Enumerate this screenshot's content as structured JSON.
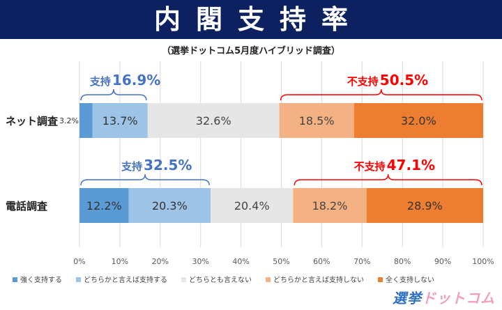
{
  "header": {
    "title": "内閣支持率",
    "subtitle": "（選挙ドットコム5月度ハイブリッド調査）"
  },
  "brand": {
    "part1": "選挙",
    "part2": "ドットコム"
  },
  "colors": {
    "strong_support": "#5b9bd5",
    "somewhat_support": "#9dc3e6",
    "neutral": "#e7e6e6",
    "somewhat_not": "#f4b183",
    "not_at_all": "#ed7d31",
    "support_text": "#4472c4",
    "nonsupport_text": "#ff0000",
    "title_bg": "#0d2160"
  },
  "chart_data": {
    "type": "bar",
    "orientation": "horizontal",
    "stacked": true,
    "categories": [
      "ネット調査",
      "電話調査"
    ],
    "series": [
      {
        "name": "強く支持する",
        "values": [
          3.2,
          12.2
        ]
      },
      {
        "name": "どちらかと言えば支持する",
        "values": [
          13.7,
          20.3
        ]
      },
      {
        "name": "どちらとも言えない",
        "values": [
          32.6,
          20.4
        ]
      },
      {
        "name": "どちらかと言えば支持しない",
        "values": [
          18.5,
          18.2
        ]
      },
      {
        "name": "全く支持しない",
        "values": [
          32.0,
          28.9
        ]
      }
    ],
    "data_labels": [
      [
        "3.2%",
        "13.7%",
        "32.6%",
        "18.5%",
        "32.0%"
      ],
      [
        "12.2%",
        "20.3%",
        "20.4%",
        "18.2%",
        "28.9%"
      ]
    ],
    "annotations": [
      {
        "row": 0,
        "label": "支持",
        "value": "16.9%",
        "kind": "support"
      },
      {
        "row": 0,
        "label": "不支持",
        "value": "50.5%",
        "kind": "nonsupport"
      },
      {
        "row": 1,
        "label": "支持",
        "value": "32.5%",
        "kind": "support"
      },
      {
        "row": 1,
        "label": "不支持",
        "value": "47.1%",
        "kind": "nonsupport"
      }
    ],
    "x_ticks": [
      "0%",
      "10%",
      "20%",
      "30%",
      "40%",
      "50%",
      "60%",
      "70%",
      "80%",
      "90%",
      "100%"
    ],
    "xlim": [
      0,
      100
    ],
    "grid": true,
    "legend_position": "bottom"
  }
}
